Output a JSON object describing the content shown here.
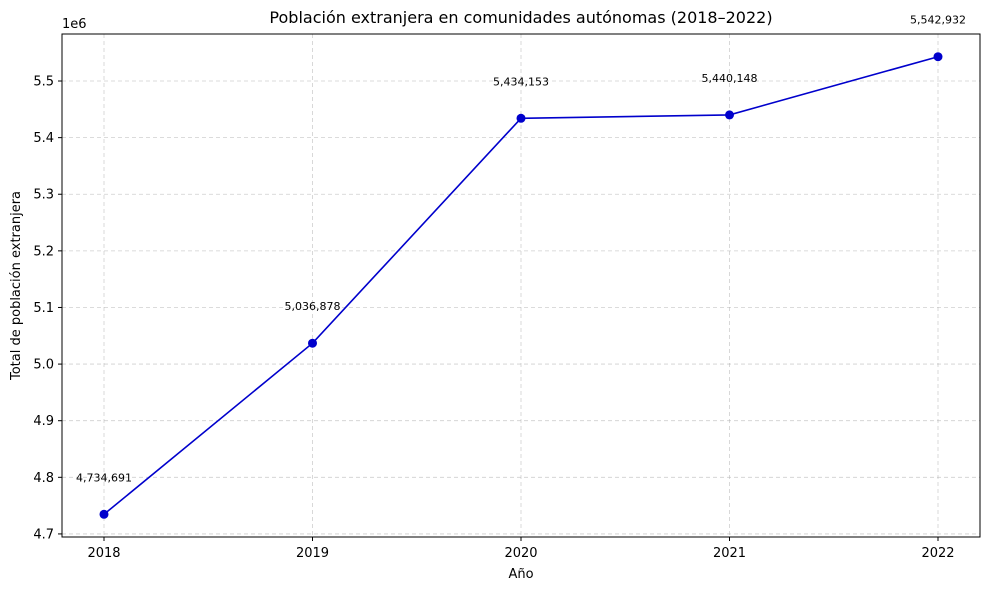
{
  "chart_data": {
    "type": "line",
    "title": "Población extranjera en comunidades autónomas (2018–2022)",
    "xlabel": "Año",
    "ylabel": "Total de población extranjera",
    "y_offset_label": "1e6",
    "categories": [
      "2018",
      "2019",
      "2020",
      "2021",
      "2022"
    ],
    "values": [
      4734691,
      5036878,
      5434153,
      5440148,
      5542932
    ],
    "data_labels": [
      "4,734,691",
      "5,036,878",
      "5,434,153",
      "5,440,148",
      "5,542,932"
    ],
    "y_ticks": [
      4.7,
      4.8,
      4.9,
      5.0,
      5.1,
      5.2,
      5.3,
      5.4,
      5.5
    ],
    "y_tick_labels": [
      "4.7",
      "4.8",
      "4.9",
      "5.0",
      "5.1",
      "5.2",
      "5.3",
      "5.4",
      "5.5"
    ],
    "ylim": [
      4694579,
      5583044
    ],
    "grid": true,
    "line_color": "#0000cc",
    "marker_color": "#0000cc"
  }
}
